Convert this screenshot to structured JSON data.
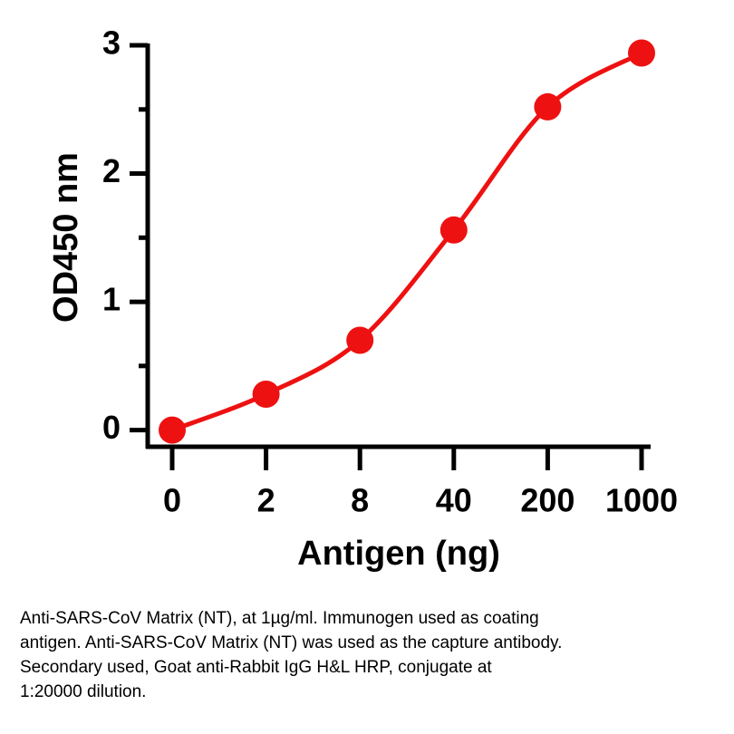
{
  "chart_data": {
    "type": "line",
    "x_label": "Antigen (ng)",
    "y_label": "OD450 nm",
    "categories": [
      "0",
      "2",
      "8",
      "40",
      "200",
      "1000"
    ],
    "series": [
      {
        "name": "OD450",
        "color": "#ee1111",
        "values": [
          0.0,
          0.28,
          0.7,
          1.56,
          2.52,
          2.94
        ]
      }
    ],
    "ylim": [
      -0.13,
      3
    ],
    "yticks": [
      0,
      1,
      2,
      3
    ],
    "minor_yticks": [
      0.5,
      1.5,
      2.5
    ],
    "smooth": true
  },
  "caption": [
    "Anti-SARS-CoV Matrix (NT), at 1µg/ml. Immunogen used as coating",
    "antigen. Anti-SARS-CoV Matrix (NT) was used as the capture antibody.",
    "Secondary used, Goat anti-Rabbit IgG H&L HRP, conjugate at",
    "1:20000 dilution."
  ]
}
